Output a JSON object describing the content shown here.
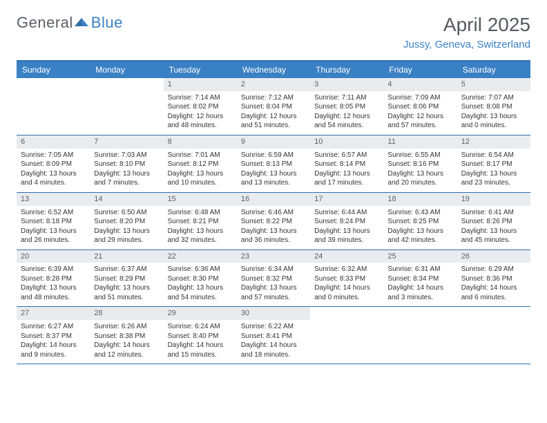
{
  "logo": {
    "part1": "General",
    "part2": "Blue"
  },
  "title": "April 2025",
  "location": "Jussy, Geneva, Switzerland",
  "colors": {
    "header_bg": "#3a80c4",
    "border": "#2f6fa8",
    "daynum_bg": "#e9ecef",
    "text": "#333333",
    "title_text": "#555a60"
  },
  "weekdays": [
    "Sunday",
    "Monday",
    "Tuesday",
    "Wednesday",
    "Thursday",
    "Friday",
    "Saturday"
  ],
  "weeks": [
    [
      {
        "n": "",
        "sr": "",
        "ss": "",
        "dl": ""
      },
      {
        "n": "",
        "sr": "",
        "ss": "",
        "dl": ""
      },
      {
        "n": "1",
        "sr": "Sunrise: 7:14 AM",
        "ss": "Sunset: 8:02 PM",
        "dl": "Daylight: 12 hours and 48 minutes."
      },
      {
        "n": "2",
        "sr": "Sunrise: 7:12 AM",
        "ss": "Sunset: 8:04 PM",
        "dl": "Daylight: 12 hours and 51 minutes."
      },
      {
        "n": "3",
        "sr": "Sunrise: 7:11 AM",
        "ss": "Sunset: 8:05 PM",
        "dl": "Daylight: 12 hours and 54 minutes."
      },
      {
        "n": "4",
        "sr": "Sunrise: 7:09 AM",
        "ss": "Sunset: 8:06 PM",
        "dl": "Daylight: 12 hours and 57 minutes."
      },
      {
        "n": "5",
        "sr": "Sunrise: 7:07 AM",
        "ss": "Sunset: 8:08 PM",
        "dl": "Daylight: 13 hours and 0 minutes."
      }
    ],
    [
      {
        "n": "6",
        "sr": "Sunrise: 7:05 AM",
        "ss": "Sunset: 8:09 PM",
        "dl": "Daylight: 13 hours and 4 minutes."
      },
      {
        "n": "7",
        "sr": "Sunrise: 7:03 AM",
        "ss": "Sunset: 8:10 PM",
        "dl": "Daylight: 13 hours and 7 minutes."
      },
      {
        "n": "8",
        "sr": "Sunrise: 7:01 AM",
        "ss": "Sunset: 8:12 PM",
        "dl": "Daylight: 13 hours and 10 minutes."
      },
      {
        "n": "9",
        "sr": "Sunrise: 6:59 AM",
        "ss": "Sunset: 8:13 PM",
        "dl": "Daylight: 13 hours and 13 minutes."
      },
      {
        "n": "10",
        "sr": "Sunrise: 6:57 AM",
        "ss": "Sunset: 8:14 PM",
        "dl": "Daylight: 13 hours and 17 minutes."
      },
      {
        "n": "11",
        "sr": "Sunrise: 6:55 AM",
        "ss": "Sunset: 8:16 PM",
        "dl": "Daylight: 13 hours and 20 minutes."
      },
      {
        "n": "12",
        "sr": "Sunrise: 6:54 AM",
        "ss": "Sunset: 8:17 PM",
        "dl": "Daylight: 13 hours and 23 minutes."
      }
    ],
    [
      {
        "n": "13",
        "sr": "Sunrise: 6:52 AM",
        "ss": "Sunset: 8:18 PM",
        "dl": "Daylight: 13 hours and 26 minutes."
      },
      {
        "n": "14",
        "sr": "Sunrise: 6:50 AM",
        "ss": "Sunset: 8:20 PM",
        "dl": "Daylight: 13 hours and 29 minutes."
      },
      {
        "n": "15",
        "sr": "Sunrise: 6:48 AM",
        "ss": "Sunset: 8:21 PM",
        "dl": "Daylight: 13 hours and 32 minutes."
      },
      {
        "n": "16",
        "sr": "Sunrise: 6:46 AM",
        "ss": "Sunset: 8:22 PM",
        "dl": "Daylight: 13 hours and 36 minutes."
      },
      {
        "n": "17",
        "sr": "Sunrise: 6:44 AM",
        "ss": "Sunset: 8:24 PM",
        "dl": "Daylight: 13 hours and 39 minutes."
      },
      {
        "n": "18",
        "sr": "Sunrise: 6:43 AM",
        "ss": "Sunset: 8:25 PM",
        "dl": "Daylight: 13 hours and 42 minutes."
      },
      {
        "n": "19",
        "sr": "Sunrise: 6:41 AM",
        "ss": "Sunset: 8:26 PM",
        "dl": "Daylight: 13 hours and 45 minutes."
      }
    ],
    [
      {
        "n": "20",
        "sr": "Sunrise: 6:39 AM",
        "ss": "Sunset: 8:28 PM",
        "dl": "Daylight: 13 hours and 48 minutes."
      },
      {
        "n": "21",
        "sr": "Sunrise: 6:37 AM",
        "ss": "Sunset: 8:29 PM",
        "dl": "Daylight: 13 hours and 51 minutes."
      },
      {
        "n": "22",
        "sr": "Sunrise: 6:36 AM",
        "ss": "Sunset: 8:30 PM",
        "dl": "Daylight: 13 hours and 54 minutes."
      },
      {
        "n": "23",
        "sr": "Sunrise: 6:34 AM",
        "ss": "Sunset: 8:32 PM",
        "dl": "Daylight: 13 hours and 57 minutes."
      },
      {
        "n": "24",
        "sr": "Sunrise: 6:32 AM",
        "ss": "Sunset: 8:33 PM",
        "dl": "Daylight: 14 hours and 0 minutes."
      },
      {
        "n": "25",
        "sr": "Sunrise: 6:31 AM",
        "ss": "Sunset: 8:34 PM",
        "dl": "Daylight: 14 hours and 3 minutes."
      },
      {
        "n": "26",
        "sr": "Sunrise: 6:29 AM",
        "ss": "Sunset: 8:36 PM",
        "dl": "Daylight: 14 hours and 6 minutes."
      }
    ],
    [
      {
        "n": "27",
        "sr": "Sunrise: 6:27 AM",
        "ss": "Sunset: 8:37 PM",
        "dl": "Daylight: 14 hours and 9 minutes."
      },
      {
        "n": "28",
        "sr": "Sunrise: 6:26 AM",
        "ss": "Sunset: 8:38 PM",
        "dl": "Daylight: 14 hours and 12 minutes."
      },
      {
        "n": "29",
        "sr": "Sunrise: 6:24 AM",
        "ss": "Sunset: 8:40 PM",
        "dl": "Daylight: 14 hours and 15 minutes."
      },
      {
        "n": "30",
        "sr": "Sunrise: 6:22 AM",
        "ss": "Sunset: 8:41 PM",
        "dl": "Daylight: 14 hours and 18 minutes."
      },
      {
        "n": "",
        "sr": "",
        "ss": "",
        "dl": ""
      },
      {
        "n": "",
        "sr": "",
        "ss": "",
        "dl": ""
      },
      {
        "n": "",
        "sr": "",
        "ss": "",
        "dl": ""
      }
    ]
  ]
}
